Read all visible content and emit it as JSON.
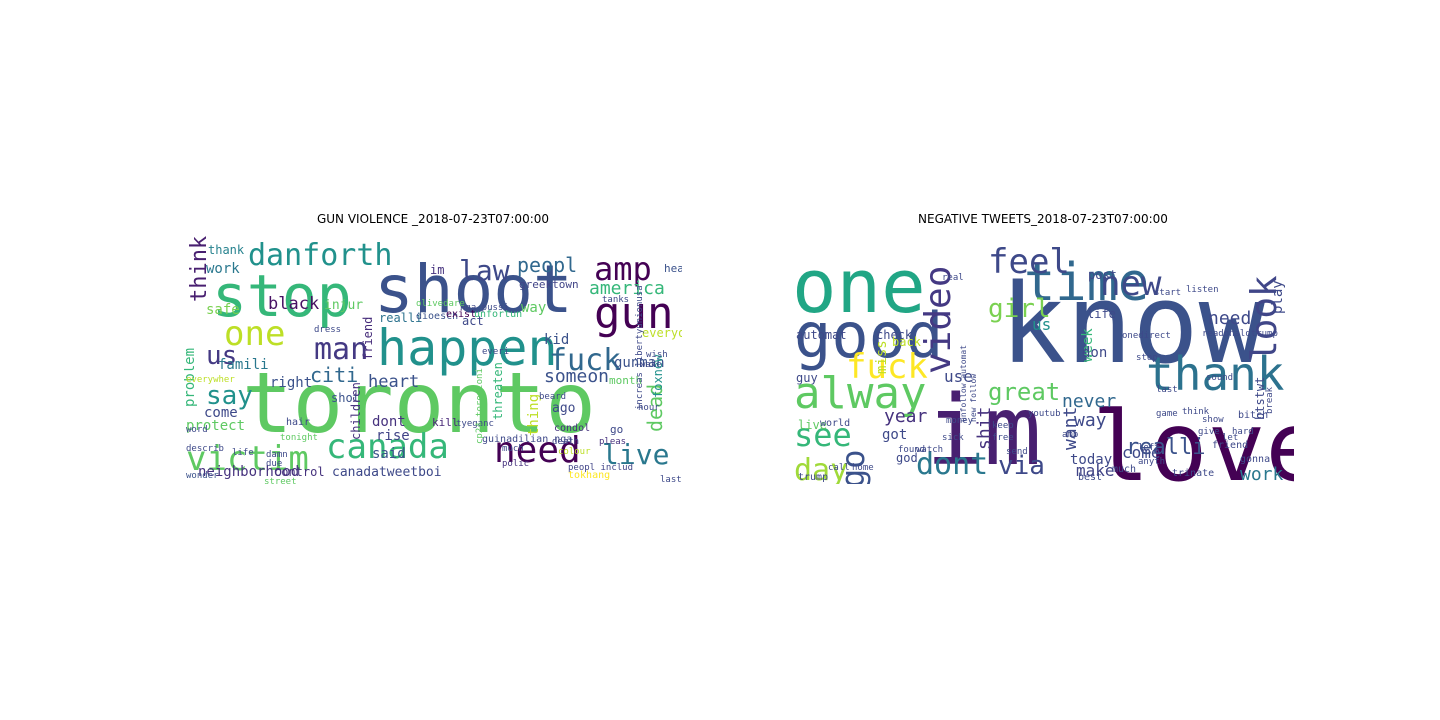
{
  "figure": {
    "titles": {
      "left": "GUN VIOLENCE _2018-07-23T07:00:00",
      "right": "NEGATIVE TWEETS_2018-07-23T07:00:00"
    }
  },
  "clouds": {
    "left": {
      "words": [
        {
          "text": "toronto",
          "color": "#5ec962"
        },
        {
          "text": "shoot",
          "color": "#3b528b"
        },
        {
          "text": "stop",
          "color": "#35b779"
        },
        {
          "text": "happen",
          "color": "#21918c"
        },
        {
          "text": "gun",
          "color": "#440154"
        },
        {
          "text": "need",
          "color": "#440154"
        },
        {
          "text": "canada",
          "color": "#35b779"
        },
        {
          "text": "danforth",
          "color": "#21918c"
        },
        {
          "text": "one",
          "color": "#bddf26"
        },
        {
          "text": "victim",
          "color": "#5ec962"
        },
        {
          "text": "fuck",
          "color": "#31688e"
        },
        {
          "text": "amp",
          "color": "#440154"
        },
        {
          "text": "law",
          "color": "#3e4989"
        },
        {
          "text": "man",
          "color": "#443983"
        },
        {
          "text": "live",
          "color": "#2a788e"
        },
        {
          "text": "think",
          "color": "#481f70"
        },
        {
          "text": "say",
          "color": "#21918c"
        },
        {
          "text": "us",
          "color": "#443983"
        },
        {
          "text": "peopl",
          "color": "#31688e"
        },
        {
          "text": "america",
          "color": "#35b779"
        },
        {
          "text": "someon",
          "color": "#3b528b"
        },
        {
          "text": "dead",
          "color": "#5ec962"
        },
        {
          "text": "citi",
          "color": "#31688e"
        },
        {
          "text": "heart",
          "color": "#3b528b"
        },
        {
          "text": "black",
          "color": "#471063"
        },
        {
          "text": "famili",
          "color": "#2a788e"
        },
        {
          "text": "neighborhood",
          "color": "#46327e"
        },
        {
          "text": "canadatweetboi",
          "color": "#3e4989"
        },
        {
          "text": "control",
          "color": "#46327e"
        },
        {
          "text": "problem",
          "color": "#35b779"
        },
        {
          "text": "right",
          "color": "#3b528b"
        },
        {
          "text": "work",
          "color": "#2a788e"
        },
        {
          "text": "thank",
          "color": "#26828e"
        },
        {
          "text": "safe",
          "color": "#7ad151"
        },
        {
          "text": "protect",
          "color": "#5ec962"
        },
        {
          "text": "come",
          "color": "#3e4989"
        },
        {
          "text": "friend",
          "color": "#472d7b"
        },
        {
          "text": "dont",
          "color": "#46327e"
        },
        {
          "text": "said",
          "color": "#3b528b"
        },
        {
          "text": "rise",
          "color": "#414487"
        },
        {
          "text": "realli",
          "color": "#2c728e"
        },
        {
          "text": "injur",
          "color": "#5ec962"
        },
        {
          "text": "kid",
          "color": "#3b528b"
        },
        {
          "text": "way",
          "color": "#5ec962"
        },
        {
          "text": "gunman",
          "color": "#3b528b"
        },
        {
          "text": "month",
          "color": "#5ec962"
        },
        {
          "text": "ago",
          "color": "#3e4989"
        },
        {
          "text": "everyon",
          "color": "#bddf26"
        },
        {
          "text": "foxnew",
          "color": "#21918c"
        },
        {
          "text": "shot",
          "color": "#3b528b"
        },
        {
          "text": "children",
          "color": "#46327e"
        },
        {
          "text": "greektown",
          "color": "#414487"
        },
        {
          "text": "hear",
          "color": "#3b528b"
        },
        {
          "text": "act",
          "color": "#3e4989"
        },
        {
          "text": "im",
          "color": "#46327e"
        },
        {
          "text": "thing",
          "color": "#bddf26"
        },
        {
          "text": "threaten",
          "color": "#35b779"
        },
        {
          "text": "kill",
          "color": "#482878"
        },
        {
          "text": "guinadilian nga",
          "color": "#3e4989"
        },
        {
          "text": "condol",
          "color": "#46327e"
        },
        {
          "text": "death",
          "color": "#414487"
        },
        {
          "text": "dioesch",
          "color": "#3b528b"
        },
        {
          "text": "exist",
          "color": "#440154"
        },
        {
          "text": "unfortun",
          "color": "#35b779"
        },
        {
          "text": "tyeganc",
          "color": "#3e4989"
        },
        {
          "text": "colour",
          "color": "#bddf26"
        },
        {
          "text": "beard",
          "color": "#3e4989"
        },
        {
          "text": "tokhang",
          "color": "#fde725"
        },
        {
          "text": "peopl includ",
          "color": "#414487"
        },
        {
          "text": "polic",
          "color": "#46327e"
        },
        {
          "text": "go",
          "color": "#3e4989"
        },
        {
          "text": "hair",
          "color": "#3e4989"
        },
        {
          "text": "wonder",
          "color": "#3b528b"
        },
        {
          "text": "street",
          "color": "#5ec962"
        },
        {
          "text": "pleas",
          "color": "#46327e"
        },
        {
          "text": "word",
          "color": "#3e4989"
        },
        {
          "text": "life",
          "color": "#3e4989"
        },
        {
          "text": "hour",
          "color": "#3e4989"
        },
        {
          "text": "wake",
          "color": "#3e4989"
        },
        {
          "text": "damn",
          "color": "#3e4989"
        },
        {
          "text": "due",
          "color": "#3e4989"
        },
        {
          "text": "last",
          "color": "#3e4989"
        },
        {
          "text": "much",
          "color": "#3e4989"
        },
        {
          "text": "describ",
          "color": "#3e4989"
        },
        {
          "text": "increas libertyunionusa",
          "color": "#3e4989"
        },
        {
          "text": "nga pussi",
          "color": "#3e4989"
        },
        {
          "text": "olivedare",
          "color": "#5ec962"
        },
        {
          "text": "tanks",
          "color": "#3e4989"
        },
        {
          "text": "wish",
          "color": "#3e4989"
        },
        {
          "text": "tonight",
          "color": "#5ec962"
        },
        {
          "text": "dress",
          "color": "#3e4989"
        },
        {
          "text": "everi",
          "color": "#3e4989"
        },
        {
          "text": "everywher",
          "color": "#bddf26"
        },
        {
          "text": "cp24 torontoni",
          "color": "#5ec962"
        }
      ]
    },
    "right": {
      "words": [
        {
          "text": "know",
          "color": "#3b528b"
        },
        {
          "text": "love",
          "color": "#440154"
        },
        {
          "text": "im",
          "color": "#481f70"
        },
        {
          "text": "one",
          "color": "#21a685"
        },
        {
          "text": "time",
          "color": "#31688e"
        },
        {
          "text": "good",
          "color": "#3b528b"
        },
        {
          "text": "thank",
          "color": "#2c728e"
        },
        {
          "text": "alway",
          "color": "#5ec962"
        },
        {
          "text": "video",
          "color": "#443983"
        },
        {
          "text": "feel",
          "color": "#3e4989"
        },
        {
          "text": "new",
          "color": "#3e4989"
        },
        {
          "text": "look",
          "color": "#404688"
        },
        {
          "text": "dont",
          "color": "#2a788e"
        },
        {
          "text": "see",
          "color": "#35b779"
        },
        {
          "text": "day",
          "color": "#a0da39"
        },
        {
          "text": "go",
          "color": "#3b528b"
        },
        {
          "text": "fuck",
          "color": "#fde725"
        },
        {
          "text": "girl",
          "color": "#7ad151"
        },
        {
          "text": "via",
          "color": "#3e4989"
        },
        {
          "text": "great",
          "color": "#5ec962"
        },
        {
          "text": "realli",
          "color": "#3b528b"
        },
        {
          "text": "year",
          "color": "#46327e"
        },
        {
          "text": "work",
          "color": "#2a788e"
        },
        {
          "text": "make",
          "color": "#414487"
        },
        {
          "text": "come",
          "color": "#3e4989"
        },
        {
          "text": "never",
          "color": "#31688e"
        },
        {
          "text": "way",
          "color": "#3e4989"
        },
        {
          "text": "need",
          "color": "#3e4989"
        },
        {
          "text": "play",
          "color": "#3e4989"
        },
        {
          "text": "shit",
          "color": "#46327e"
        },
        {
          "text": "want",
          "color": "#3e4989"
        },
        {
          "text": "week",
          "color": "#35b779"
        },
        {
          "text": "today",
          "color": "#3e4989"
        },
        {
          "text": "us",
          "color": "#21918c"
        },
        {
          "text": "don",
          "color": "#3e4989"
        },
        {
          "text": "got",
          "color": "#3e4989"
        },
        {
          "text": "use",
          "color": "#3e4989"
        },
        {
          "text": "automat",
          "color": "#3e4989"
        },
        {
          "text": "check",
          "color": "#3e4989"
        },
        {
          "text": "miss",
          "color": "#bddf26"
        },
        {
          "text": "back",
          "color": "#bddf26"
        },
        {
          "text": "post",
          "color": "#3e4989"
        },
        {
          "text": "life",
          "color": "#3e4989"
        },
        {
          "text": "guy",
          "color": "#3e4989"
        },
        {
          "text": "live",
          "color": "#5ec962"
        },
        {
          "text": "world",
          "color": "#3e4989"
        },
        {
          "text": "trump",
          "color": "#3e4989"
        },
        {
          "text": "god",
          "color": "#3e4989"
        },
        {
          "text": "bitch",
          "color": "#3e4989"
        },
        {
          "text": "best",
          "color": "#3e4989"
        },
        {
          "text": "trinate",
          "color": "#3e4989"
        },
        {
          "text": "gonna",
          "color": "#3e4989"
        },
        {
          "text": "much",
          "color": "#3e4989"
        },
        {
          "text": "onedirect",
          "color": "#3e4989"
        },
        {
          "text": "readonaldtrump",
          "color": "#3e4989"
        },
        {
          "text": "btstwt",
          "color": "#3e4989"
        },
        {
          "text": "think",
          "color": "#3e4989"
        },
        {
          "text": "friend",
          "color": "#3e4989"
        },
        {
          "text": "anyth",
          "color": "#3e4989"
        },
        {
          "text": "money",
          "color": "#3e4989"
        },
        {
          "text": "unfollow automat",
          "color": "#3e4989"
        },
        {
          "text": "new follow",
          "color": "#3e4989"
        },
        {
          "text": "sick",
          "color": "#3e4989"
        },
        {
          "text": "call",
          "color": "#3e4989"
        },
        {
          "text": "home",
          "color": "#3e4989"
        },
        {
          "text": "found",
          "color": "#3e4989"
        },
        {
          "text": "keep",
          "color": "#3e4989"
        },
        {
          "text": "real",
          "color": "#3e4989"
        },
        {
          "text": "stop",
          "color": "#3e4989"
        },
        {
          "text": "start",
          "color": "#3e4989"
        },
        {
          "text": "sound",
          "color": "#3e4989"
        },
        {
          "text": "break",
          "color": "#3e4989"
        },
        {
          "text": "let",
          "color": "#3e4989"
        },
        {
          "text": "free",
          "color": "#3e4989"
        },
        {
          "text": "send",
          "color": "#3e4989"
        },
        {
          "text": "show",
          "color": "#3e4989"
        },
        {
          "text": "give",
          "color": "#3e4989"
        },
        {
          "text": "game",
          "color": "#3e4989"
        },
        {
          "text": "watch",
          "color": "#3e4989"
        },
        {
          "text": "youtub",
          "color": "#3e4989"
        },
        {
          "text": "hard",
          "color": "#3e4989"
        },
        {
          "text": "left",
          "color": "#3e4989"
        },
        {
          "text": "last",
          "color": "#3e4989"
        },
        {
          "text": "amp",
          "color": "#3e4989"
        },
        {
          "text": "listen",
          "color": "#3e4989"
        }
      ]
    }
  }
}
